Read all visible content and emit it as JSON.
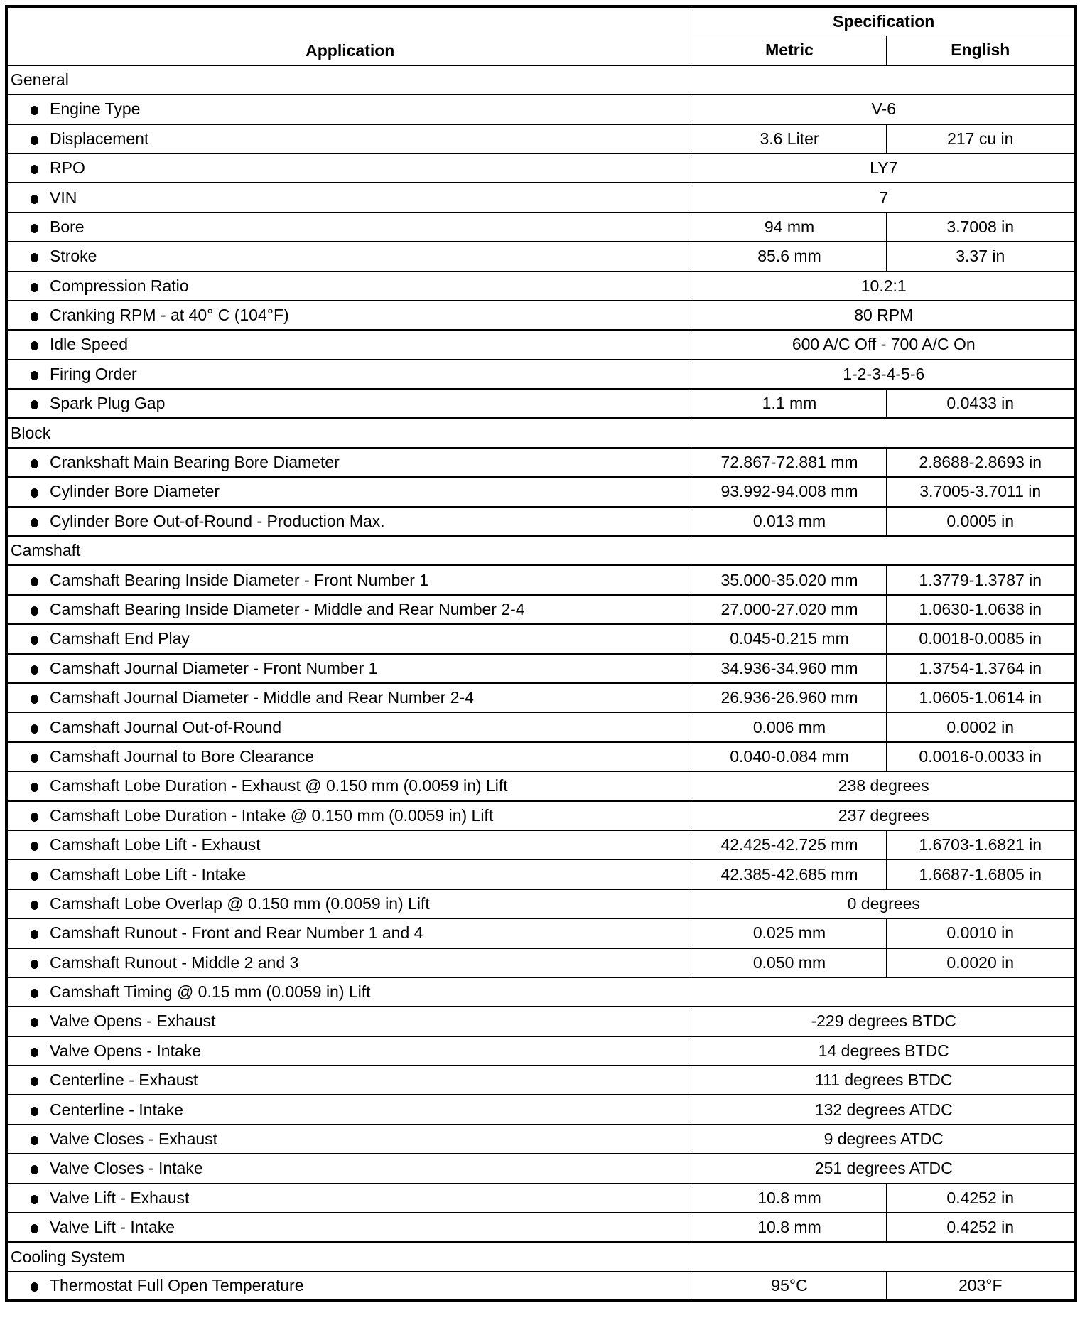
{
  "header": {
    "application": "Application",
    "specification": "Specification",
    "metric": "Metric",
    "english": "English"
  },
  "rows": [
    {
      "section": "General"
    },
    {
      "label": "Engine Type",
      "value": "V-6"
    },
    {
      "label": "Displacement",
      "metric": "3.6 Liter",
      "english": "217 cu in"
    },
    {
      "label": "RPO",
      "value": "LY7"
    },
    {
      "label": "VIN",
      "value": "7"
    },
    {
      "label": "Bore",
      "metric": "94 mm",
      "english": "3.7008 in"
    },
    {
      "label": "Stroke",
      "metric": "85.6 mm",
      "english": "3.37 in"
    },
    {
      "label": "Compression Ratio",
      "value": "10.2:1"
    },
    {
      "label": "Cranking RPM - at 40° C (104°F)",
      "value": "80 RPM"
    },
    {
      "label": "Idle Speed",
      "value": "600 A/C Off - 700 A/C On"
    },
    {
      "label": "Firing Order",
      "value": "1-2-3-4-5-6"
    },
    {
      "label": "Spark Plug Gap",
      "metric": "1.1 mm",
      "english": "0.0433 in"
    },
    {
      "section": "Block"
    },
    {
      "label": "Crankshaft Main Bearing Bore Diameter",
      "metric": "72.867-72.881 mm",
      "english": "2.8688-2.8693 in"
    },
    {
      "label": "Cylinder Bore Diameter",
      "metric": "93.992-94.008 mm",
      "english": "3.7005-3.7011 in"
    },
    {
      "label": "Cylinder Bore Out-of-Round - Production Max.",
      "metric": "0.013 mm",
      "english": "0.0005 in"
    },
    {
      "section": "Camshaft"
    },
    {
      "label": "Camshaft Bearing Inside Diameter - Front Number 1",
      "metric": "35.000-35.020 mm",
      "english": "1.3779-1.3787 in"
    },
    {
      "label": "Camshaft Bearing Inside Diameter - Middle and Rear Number 2-4",
      "metric": "27.000-27.020 mm",
      "english": "1.0630-1.0638 in"
    },
    {
      "label": "Camshaft End Play",
      "metric": "0.045-0.215 mm",
      "english": "0.0018-0.0085 in"
    },
    {
      "label": "Camshaft Journal Diameter - Front Number 1",
      "metric": "34.936-34.960 mm",
      "english": "1.3754-1.3764 in"
    },
    {
      "label": "Camshaft Journal Diameter - Middle and Rear Number 2-4",
      "metric": "26.936-26.960 mm",
      "english": "1.0605-1.0614 in"
    },
    {
      "label": "Camshaft Journal Out-of-Round",
      "metric": "0.006 mm",
      "english": "0.0002 in"
    },
    {
      "label": "Camshaft Journal to Bore Clearance",
      "metric": "0.040-0.084 mm",
      "english": "0.0016-0.0033 in"
    },
    {
      "label": "Camshaft Lobe Duration - Exhaust @ 0.150 mm (0.0059 in) Lift",
      "value": "238 degrees"
    },
    {
      "label": "Camshaft Lobe Duration - Intake @ 0.150 mm (0.0059 in) Lift",
      "value": "237 degrees"
    },
    {
      "label": "Camshaft Lobe Lift - Exhaust",
      "metric": "42.425-42.725 mm",
      "english": "1.6703-1.6821 in"
    },
    {
      "label": "Camshaft Lobe Lift - Intake",
      "metric": "42.385-42.685 mm",
      "english": "1.6687-1.6805 in"
    },
    {
      "label": "Camshaft Lobe Overlap @ 0.150 mm (0.0059 in) Lift",
      "value": "0 degrees"
    },
    {
      "label": "Camshaft Runout - Front and Rear Number 1 and 4",
      "metric": "0.025 mm",
      "english": "0.0010 in"
    },
    {
      "label": "Camshaft Runout - Middle 2 and 3",
      "metric": "0.050 mm",
      "english": "0.0020 in"
    },
    {
      "label": "Camshaft Timing @ 0.15 mm (0.0059 in) Lift",
      "full": true
    },
    {
      "label": "Valve Opens - Exhaust",
      "value": "-229 degrees BTDC"
    },
    {
      "label": "Valve Opens - Intake",
      "value": "14 degrees BTDC"
    },
    {
      "label": "Centerline - Exhaust",
      "value": "111 degrees BTDC"
    },
    {
      "label": "Centerline - Intake",
      "value": "132 degrees ATDC"
    },
    {
      "label": "Valve Closes - Exhaust",
      "value": "9 degrees ATDC"
    },
    {
      "label": "Valve Closes - Intake",
      "value": "251 degrees ATDC"
    },
    {
      "label": "Valve Lift - Exhaust",
      "metric": "10.8 mm",
      "english": "0.4252 in"
    },
    {
      "label": "Valve Lift - Intake",
      "metric": "10.8 mm",
      "english": "0.4252 in"
    },
    {
      "section": "Cooling System"
    },
    {
      "label": "Thermostat Full Open Temperature",
      "metric": "95°C",
      "english": "203°F"
    }
  ]
}
